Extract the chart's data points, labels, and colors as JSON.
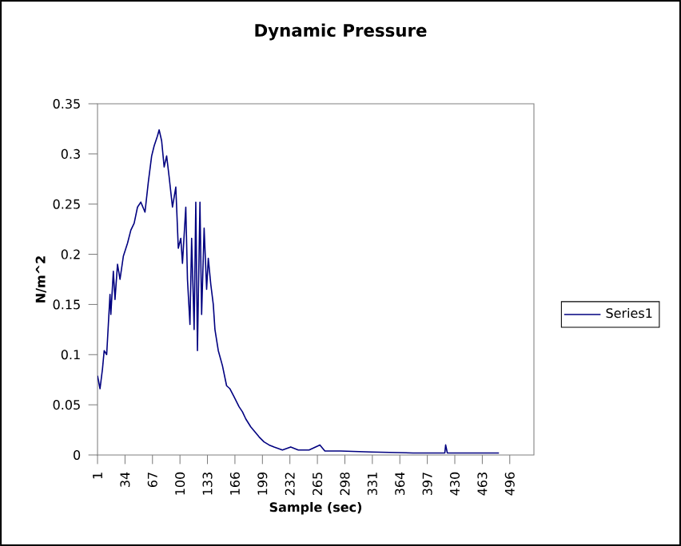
{
  "chart_data": {
    "type": "line",
    "title": "Dynamic Pressure",
    "xlabel": "Sample (sec)",
    "ylabel": "N/m^2",
    "x": [
      1,
      4,
      7,
      9,
      12,
      14,
      16,
      17,
      20,
      22,
      25,
      28,
      32,
      37,
      41,
      45,
      49,
      53,
      58,
      62,
      66,
      69,
      73,
      75,
      78,
      81,
      84,
      87,
      91,
      95,
      98,
      101,
      103,
      107,
      109,
      112,
      114,
      117,
      119,
      121,
      124,
      126,
      129,
      132,
      134,
      137,
      140,
      142,
      146,
      151,
      156,
      160,
      165,
      171,
      175,
      179,
      185,
      190,
      195,
      201,
      207,
      213,
      223,
      233,
      242,
      255,
      268,
      274,
      293,
      330,
      380,
      418,
      419,
      421,
      483
    ],
    "series": [
      {
        "name": "Series1",
        "color": "#000080",
        "values": [
          0.079,
          0.066,
          0.086,
          0.104,
          0.1,
          0.13,
          0.16,
          0.14,
          0.183,
          0.155,
          0.19,
          0.175,
          0.198,
          0.211,
          0.224,
          0.231,
          0.247,
          0.252,
          0.242,
          0.272,
          0.298,
          0.308,
          0.318,
          0.324,
          0.313,
          0.287,
          0.298,
          0.277,
          0.247,
          0.267,
          0.206,
          0.216,
          0.191,
          0.247,
          0.175,
          0.13,
          0.216,
          0.125,
          0.252,
          0.104,
          0.252,
          0.14,
          0.226,
          0.165,
          0.196,
          0.17,
          0.15,
          0.125,
          0.104,
          0.089,
          0.069,
          0.066,
          0.058,
          0.048,
          0.043,
          0.036,
          0.028,
          0.023,
          0.018,
          0.013,
          0.01,
          0.008,
          0.005,
          0.008,
          0.005,
          0.005,
          0.01,
          0.004,
          0.004,
          0.003,
          0.002,
          0.002,
          0.01,
          0.002,
          0.002
        ]
      }
    ],
    "xlim": [
      1,
      525
    ],
    "ylim": [
      0,
      0.35
    ],
    "xticks": [
      1,
      34,
      67,
      100,
      133,
      166,
      199,
      232,
      265,
      298,
      331,
      364,
      397,
      430,
      463,
      496
    ],
    "yticks": [
      0,
      0.05,
      0.1,
      0.15,
      0.2,
      0.25,
      0.3,
      0.35
    ],
    "legend": "right",
    "marker": "none",
    "line_style": "solid"
  }
}
